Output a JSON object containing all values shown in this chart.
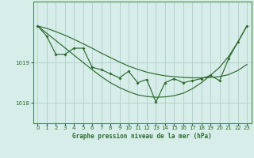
{
  "x": [
    0,
    1,
    2,
    3,
    4,
    5,
    6,
    7,
    8,
    9,
    10,
    11,
    12,
    13,
    14,
    15,
    16,
    17,
    18,
    19,
    20,
    21,
    22,
    23
  ],
  "measured": [
    1019.9,
    1019.65,
    1019.2,
    1019.2,
    1019.35,
    1019.35,
    1018.88,
    1018.82,
    1018.72,
    1018.62,
    1018.78,
    1018.5,
    1018.58,
    1018.02,
    1018.5,
    1018.6,
    1018.5,
    1018.55,
    1018.6,
    1018.68,
    1018.55,
    1019.1,
    1019.5,
    1019.9
  ],
  "smooth_steep": [
    1019.9,
    1019.72,
    1019.54,
    1019.36,
    1019.18,
    1019.0,
    1018.82,
    1018.65,
    1018.5,
    1018.38,
    1018.28,
    1018.2,
    1018.16,
    1018.14,
    1018.15,
    1018.18,
    1018.24,
    1018.35,
    1018.5,
    1018.68,
    1018.88,
    1019.15,
    1019.5,
    1019.9
  ],
  "smooth_shallow": [
    1019.9,
    1019.84,
    1019.76,
    1019.67,
    1019.57,
    1019.46,
    1019.35,
    1019.23,
    1019.12,
    1019.01,
    1018.91,
    1018.83,
    1018.76,
    1018.71,
    1018.67,
    1018.65,
    1018.63,
    1018.62,
    1018.62,
    1018.63,
    1018.65,
    1018.7,
    1018.8,
    1018.95
  ],
  "bg_color": "#d6ede9",
  "grid_color": "#b0ceca",
  "line_color": "#2d6a2d",
  "spine_color": "#4a8a4a",
  "title": "Graphe pression niveau de la mer (hPa)",
  "ylim_min": 1017.5,
  "ylim_max": 1020.5,
  "yticks": [
    1018,
    1019
  ],
  "xticks": [
    0,
    1,
    2,
    3,
    4,
    5,
    6,
    7,
    8,
    9,
    10,
    11,
    12,
    13,
    14,
    15,
    16,
    17,
    18,
    19,
    20,
    21,
    22,
    23
  ],
  "xlabel_fontsize": 5.5,
  "tick_fontsize": 5.0
}
